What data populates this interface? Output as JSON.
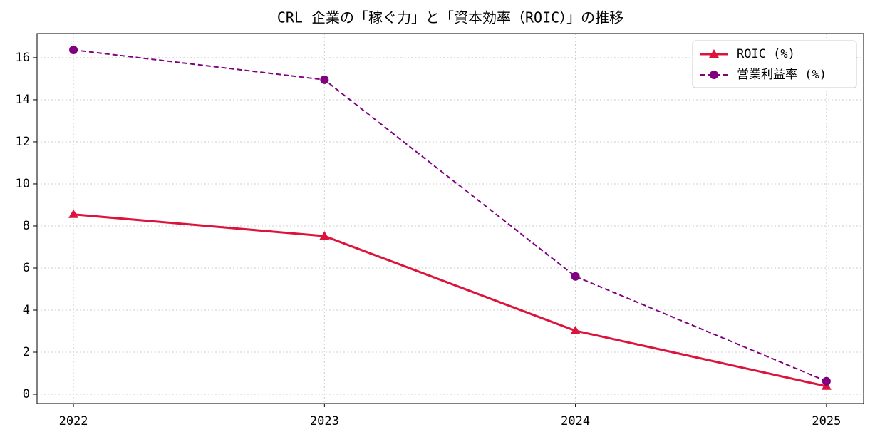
{
  "chart_data": {
    "type": "line",
    "title": "CRL 企業の「稼ぐ力」と「資本効率（ROIC）」の推移",
    "x": [
      2022,
      2023,
      2024,
      2025
    ],
    "series": [
      {
        "name": "ROIC (%)",
        "color": "#dc143c",
        "marker": "triangle",
        "dash": "solid",
        "values": [
          8.55,
          7.52,
          3.02,
          0.38
        ]
      },
      {
        "name": "営業利益率 (%)",
        "color": "#800080",
        "marker": "circle",
        "dash": "dashed",
        "values": [
          16.37,
          14.95,
          5.6,
          0.62
        ]
      }
    ],
    "xlim": [
      2021.855,
      2025.148
    ],
    "xticks": [
      2022,
      2023,
      2024,
      2025
    ],
    "ylim": [
      -0.44,
      17.15
    ],
    "yticks": [
      0,
      2,
      4,
      6,
      8,
      10,
      12,
      14,
      16
    ],
    "grid": true,
    "legend": "upper-right"
  }
}
